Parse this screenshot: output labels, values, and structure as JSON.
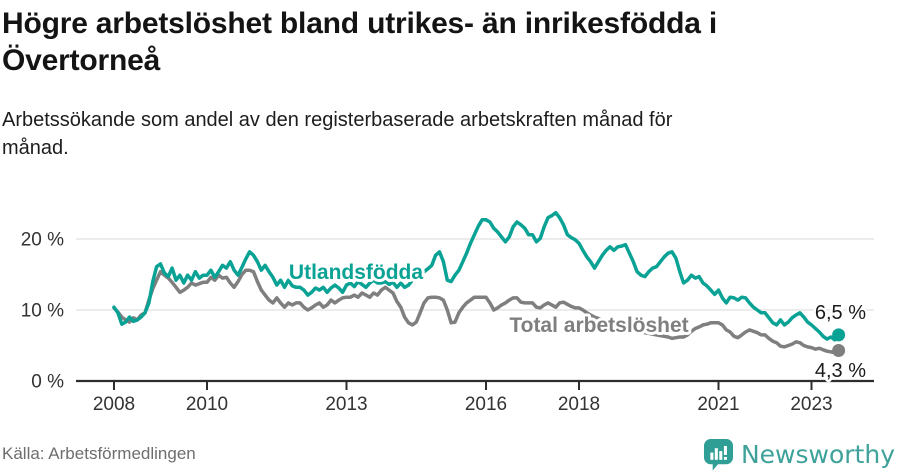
{
  "header": {
    "title_lines": [
      "Högre arbetslöshet bland utrikes- än inrikesfödda i",
      "Övertorneå"
    ],
    "subtitle_lines": [
      "Arbetssökande som andel av den registerbaserade arbetskraften månad för",
      "månad."
    ]
  },
  "footer": {
    "source": "Källa: Arbetsförmedlingen",
    "brand": "Newsworthy",
    "brand_color": "#2f9e94"
  },
  "chart_data": {
    "type": "line",
    "title": "Högre arbetslöshet bland utrikes- än inrikesfödda i Övertorneå",
    "subtitle": "Arbetssökande som andel av den registerbaserade arbetskraften månad för månad.",
    "unit": "%",
    "x_start_year": 2008,
    "months_per_point": 1,
    "grid": "horizontal",
    "y_axis": {
      "ticks": [
        {
          "value": 0,
          "label": "0 %"
        },
        {
          "value": 10,
          "label": "10 %"
        },
        {
          "value": 20,
          "label": "20 %"
        }
      ],
      "ylim": [
        0,
        25
      ]
    },
    "x_axis": {
      "ticks": [
        {
          "year": 2008,
          "label": "2008"
        },
        {
          "year": 2010,
          "label": "2010"
        },
        {
          "year": 2013,
          "label": "2013"
        },
        {
          "year": 2016,
          "label": "2016"
        },
        {
          "year": 2018,
          "label": "2018"
        },
        {
          "year": 2021,
          "label": "2021"
        },
        {
          "year": 2023,
          "label": "2023"
        }
      ]
    },
    "series": [
      {
        "name": "Utlandsfödda",
        "color": "#0aa294",
        "end_label": "6,5 %",
        "end_value": 6.5,
        "values": [
          10.4,
          9.6,
          8.0,
          8.3,
          9.0,
          8.4,
          8.6,
          9.0,
          9.6,
          11.0,
          14.0,
          16.1,
          16.5,
          15.2,
          14.7,
          15.9,
          14.2,
          14.9,
          13.8,
          14.9,
          14.2,
          15.4,
          14.5,
          14.9,
          14.9,
          15.6,
          14.6,
          15.4,
          16.3,
          15.9,
          16.8,
          15.6,
          14.9,
          16.0,
          17.2,
          18.2,
          17.7,
          16.8,
          15.6,
          16.3,
          15.4,
          14.6,
          13.5,
          14.2,
          13.2,
          14.2,
          13.4,
          13.2,
          13.2,
          12.8,
          12.1,
          12.5,
          13.1,
          12.8,
          13.2,
          12.5,
          13.1,
          13.5,
          13.1,
          12.5,
          13.5,
          13.8,
          13.3,
          14.0,
          13.6,
          13.2,
          13.8,
          14.2,
          13.8,
          13.8,
          14.0,
          13.6,
          13.9,
          13.2,
          13.8,
          13.2,
          13.5,
          14.2,
          14.5,
          14.9,
          15.4,
          15.8,
          16.3,
          17.7,
          18.2,
          16.8,
          14.2,
          14.0,
          14.9,
          15.6,
          16.8,
          18.0,
          19.4,
          20.6,
          21.8,
          22.7,
          22.7,
          22.4,
          21.5,
          21.0,
          20.3,
          19.6,
          20.3,
          21.7,
          22.4,
          22.0,
          21.5,
          20.6,
          20.6,
          19.6,
          20.1,
          21.7,
          23.0,
          23.3,
          23.7,
          23.0,
          22.0,
          20.6,
          20.2,
          19.9,
          19.4,
          18.4,
          17.5,
          16.8,
          15.9,
          16.8,
          17.7,
          18.4,
          18.9,
          18.4,
          18.9,
          19.0,
          19.2,
          18.0,
          16.8,
          15.4,
          14.9,
          14.7,
          15.4,
          15.9,
          16.1,
          16.8,
          17.5,
          18.0,
          18.2,
          17.3,
          15.4,
          13.8,
          14.2,
          14.9,
          14.5,
          14.7,
          13.8,
          13.4,
          12.8,
          12.2,
          12.8,
          11.7,
          11.0,
          11.8,
          11.7,
          11.4,
          11.8,
          11.7,
          11.0,
          10.4,
          10.0,
          9.6,
          9.6,
          8.9,
          8.2,
          7.9,
          8.6,
          7.9,
          8.3,
          8.9,
          9.3,
          9.6,
          9.0,
          8.3,
          7.9,
          7.4,
          6.9,
          6.3,
          5.9,
          6.2,
          5.8,
          6.5
        ]
      },
      {
        "name": "Total arbetslöshet",
        "color": "#7f7f7f",
        "end_label": "4,3 %",
        "end_value": 4.3,
        "values": [
          10.3,
          9.7,
          9.0,
          8.6,
          8.3,
          8.9,
          8.6,
          9.3,
          9.6,
          11.4,
          13.0,
          14.2,
          15.4,
          14.9,
          14.5,
          13.9,
          13.2,
          12.5,
          12.8,
          13.2,
          13.8,
          13.5,
          13.7,
          13.9,
          13.9,
          14.6,
          14.2,
          14.9,
          14.5,
          14.6,
          13.8,
          13.2,
          14.0,
          15.0,
          15.6,
          15.6,
          15.4,
          14.0,
          12.8,
          12.1,
          11.4,
          11.0,
          11.7,
          11.0,
          10.4,
          11.0,
          10.7,
          11.0,
          11.0,
          10.4,
          10.0,
          10.3,
          10.7,
          11.0,
          10.4,
          10.7,
          11.4,
          11.0,
          11.4,
          11.7,
          11.8,
          11.8,
          12.1,
          11.8,
          12.4,
          12.1,
          11.8,
          12.4,
          12.1,
          12.8,
          13.2,
          12.8,
          12.4,
          11.2,
          10.4,
          9.0,
          8.2,
          7.9,
          8.3,
          9.6,
          11.0,
          11.7,
          11.8,
          11.8,
          11.7,
          11.4,
          10.0,
          8.2,
          8.3,
          9.6,
          10.4,
          11.0,
          11.4,
          11.8,
          11.8,
          11.8,
          11.8,
          11.0,
          10.0,
          10.3,
          10.7,
          11.0,
          11.4,
          11.7,
          11.7,
          11.1,
          11.0,
          11.0,
          11.0,
          10.4,
          10.3,
          10.7,
          11.0,
          10.7,
          10.4,
          11.0,
          11.1,
          10.8,
          10.5,
          10.3,
          10.3,
          10.0,
          9.6,
          9.3,
          9.0,
          8.8,
          8.6,
          8.5,
          8.3,
          8.2,
          8.0,
          7.8,
          7.7,
          7.5,
          7.3,
          7.1,
          7.0,
          6.8,
          6.7,
          6.6,
          6.5,
          6.4,
          6.3,
          6.2,
          6.0,
          6.1,
          6.2,
          6.2,
          6.5,
          7.0,
          7.4,
          7.6,
          7.9,
          8.0,
          8.2,
          8.2,
          8.2,
          7.9,
          7.2,
          6.9,
          6.3,
          6.1,
          6.5,
          6.9,
          7.2,
          7.0,
          6.8,
          6.5,
          6.5,
          6.0,
          5.6,
          5.4,
          4.9,
          4.8,
          5.0,
          5.2,
          5.5,
          5.4,
          5.0,
          4.8,
          4.7,
          4.5,
          4.6,
          4.4,
          4.2,
          4.1,
          4.0,
          4.3
        ]
      }
    ],
    "legend_position": "inline-labels"
  }
}
